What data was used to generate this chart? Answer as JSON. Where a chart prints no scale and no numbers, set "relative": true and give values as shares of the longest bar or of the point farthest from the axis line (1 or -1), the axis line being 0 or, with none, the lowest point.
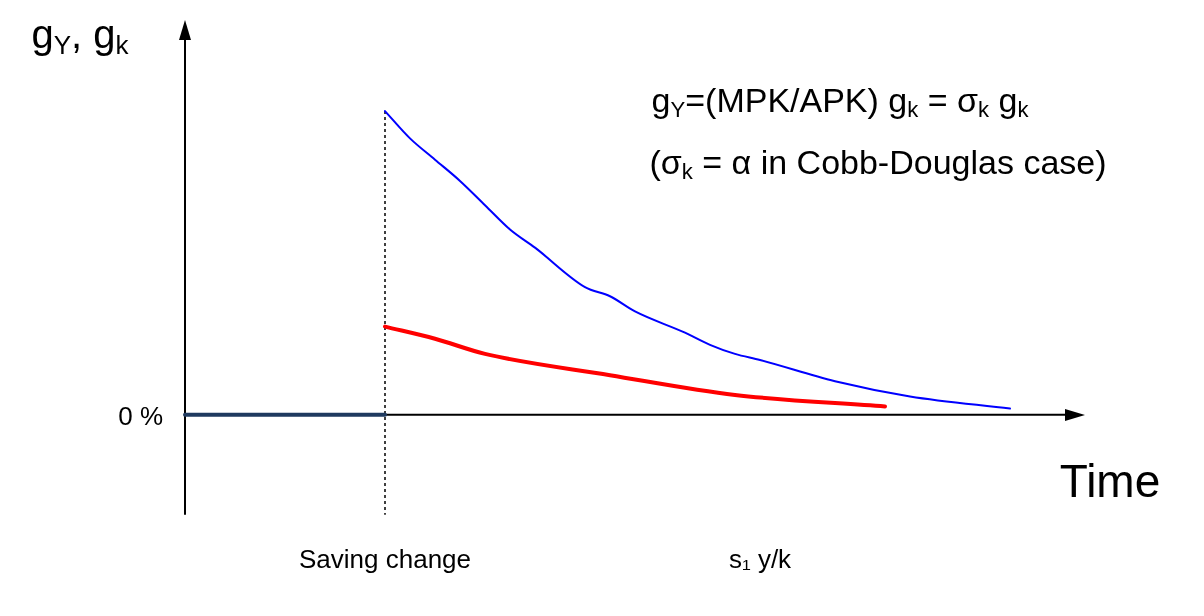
{
  "chart_data": {
    "type": "line",
    "relative": true,
    "xlabel": "Time",
    "ylabel": "g$_{Y}$, g$_{k}$",
    "categories": [
      null,
      null,
      null,
      null,
      null,
      null,
      null,
      null,
      "Saving change",
      null,
      null,
      null,
      null,
      null,
      null,
      null,
      null,
      null,
      null,
      null,
      null,
      null,
      null,
      "s₁ y/k",
      null,
      null,
      null,
      null,
      null,
      null,
      null,
      null,
      null,
      null,
      null,
      null,
      null
    ],
    "series": [
      {
        "color": "#1f3a5f",
        "values": [
          0,
          0,
          0,
          0,
          0,
          0,
          0,
          0,
          0,
          null,
          null,
          null,
          null,
          null,
          null,
          null,
          null,
          null,
          null,
          null,
          null,
          null,
          null,
          null,
          null,
          null,
          null,
          null,
          null,
          null,
          null,
          null,
          null,
          null,
          null,
          null,
          null
        ]
      },
      {
        "color": "#0000ff",
        "values": [
          null,
          null,
          null,
          null,
          null,
          null,
          null,
          null,
          1.0,
          0.91,
          0.84,
          0.77,
          0.69,
          0.61,
          0.55,
          null,
          0.42,
          0.39,
          0.34,
          null,
          0.27,
          0.23,
          0.2,
          0.18,
          null,
          null,
          0.11,
          null,
          null,
          0.06,
          null,
          null,
          null,
          0.02,
          null,
          null,
          null
        ]
      },
      {
        "color": "#ff0000",
        "values": [
          null,
          null,
          null,
          null,
          null,
          null,
          null,
          null,
          0.29,
          null,
          0.25,
          null,
          0.2,
          null,
          null,
          null,
          null,
          0.13,
          null,
          null,
          null,
          null,
          0.065,
          null,
          null,
          null,
          null,
          null,
          0.027,
          null,
          null,
          null,
          null,
          null,
          null,
          null,
          null
        ]
      }
    ],
    "ref_lines": [
      {
        "axis": "x",
        "value": "Saving change",
        "line_style": "dotted",
        "color": "#000000"
      },
      {
        "axis": "y",
        "value": 0,
        "label": "0 %",
        "line_style": "solid",
        "color": "#000000"
      }
    ],
    "annotations": [
      "g$_{Y}$=(MPK/APK) g$_{k}$ = σ$_{k}$ g$_{k}$",
      "(σ$_{k}$ = α in Cobb-Douglas case)"
    ],
    "legend": false,
    "grid": false,
    "marker": "none",
    "line_style": "solid"
  }
}
